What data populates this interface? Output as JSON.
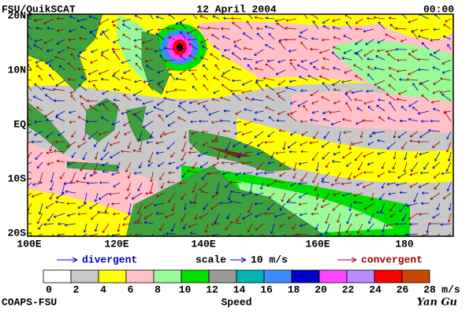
{
  "header": {
    "source": "FSU/QuikSCAT",
    "date": "12 April 2004",
    "time": "00:00"
  },
  "map": {
    "lat_labels": [
      "20N",
      "10N",
      "EQ",
      "10S",
      "20S"
    ],
    "lon_labels": [
      "100E",
      "120E",
      "140E",
      "160E",
      "180"
    ]
  },
  "legend": {
    "divergent": "divergent",
    "scale": "scale",
    "scale_value": "10 m/s",
    "convergent": "convergent"
  },
  "colorbar": {
    "labels": [
      "0",
      "2",
      "4",
      "6",
      "8",
      "10",
      "12",
      "14",
      "16",
      "18",
      "20",
      "22",
      "24",
      "26",
      "28"
    ],
    "unit": "m/s",
    "title": "Speed",
    "colors": [
      "#ffffff",
      "#c8c8c8",
      "#ffff00",
      "#ffc0c8",
      "#98fb98",
      "#00e000",
      "#9a9a9a",
      "#00b4b4",
      "#3c8cff",
      "#0000c8",
      "#ff44ff",
      "#b48cff",
      "#ff0000",
      "#c84600"
    ]
  },
  "footer": {
    "left": "COAPS-FSU",
    "right": "Yan Gu"
  }
}
